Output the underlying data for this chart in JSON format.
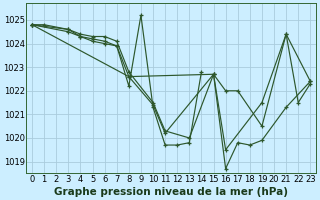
{
  "title": "Graphe pression niveau de la mer (hPa)",
  "bg_color": "#cceeff",
  "grid_color": "#aaccdd",
  "line_color": "#2d572c",
  "xlim": [
    -0.5,
    23.5
  ],
  "ylim": [
    1018.5,
    1025.7
  ],
  "yticks": [
    1019,
    1020,
    1021,
    1022,
    1023,
    1024,
    1025
  ],
  "xticks": [
    0,
    1,
    2,
    3,
    4,
    5,
    6,
    7,
    8,
    9,
    10,
    11,
    12,
    13,
    14,
    15,
    16,
    17,
    18,
    19,
    20,
    21,
    22,
    23
  ],
  "series": [
    {
      "x": [
        0,
        1,
        3,
        4,
        5,
        6,
        7,
        8,
        9,
        10,
        11,
        12,
        13,
        14
      ],
      "y": [
        1024.8,
        1024.8,
        1024.6,
        1024.3,
        1024.1,
        1024.0,
        1023.9,
        1022.2,
        1025.2,
        1021.3,
        1019.7,
        1019.7,
        1019.8,
        1022.8
      ]
    },
    {
      "x": [
        0,
        3,
        4,
        5,
        6,
        7,
        8,
        10,
        11,
        13,
        15,
        16,
        17,
        18,
        19,
        21,
        23
      ],
      "y": [
        1024.8,
        1024.6,
        1024.4,
        1024.3,
        1024.3,
        1024.1,
        1022.8,
        1021.5,
        1020.3,
        1020.0,
        1022.7,
        1018.7,
        1019.8,
        1019.7,
        1019.9,
        1021.3,
        1022.4
      ]
    },
    {
      "x": [
        0,
        3,
        4,
        5,
        6,
        7,
        8,
        10,
        11,
        15,
        16,
        19,
        21,
        23
      ],
      "y": [
        1024.8,
        1024.5,
        1024.3,
        1024.2,
        1024.1,
        1023.9,
        1022.6,
        1021.4,
        1020.2,
        1022.7,
        1019.5,
        1021.5,
        1024.4,
        1022.4
      ]
    },
    {
      "x": [
        0,
        8,
        15,
        16,
        17,
        19,
        21,
        22,
        23
      ],
      "y": [
        1024.8,
        1022.6,
        1022.7,
        1022.0,
        1022.0,
        1020.5,
        1024.4,
        1021.5,
        1022.3
      ]
    }
  ],
  "tick_fontsize": 6.0,
  "xlabel_fontsize": 7.5
}
